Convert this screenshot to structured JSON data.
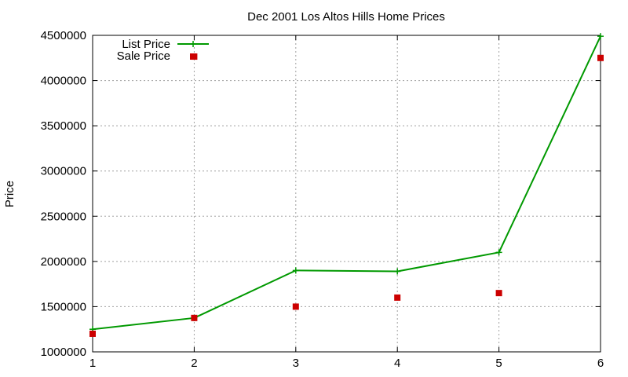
{
  "chart_data": {
    "type": "line",
    "title": "Dec 2001 Los Altos Hills Home Prices",
    "ylabel": "Price",
    "xlabel": "",
    "x": [
      1,
      2,
      3,
      4,
      5,
      6
    ],
    "xlim": [
      1,
      6
    ],
    "ylim": [
      1000000,
      4500000
    ],
    "x_ticks": [
      "1",
      "2",
      "3",
      "4",
      "5",
      "6"
    ],
    "y_ticks": [
      "1000000",
      "1500000",
      "2000000",
      "2500000",
      "3000000",
      "3500000",
      "4000000",
      "4500000"
    ],
    "grid": true,
    "legend_position": "top-left",
    "series": [
      {
        "name": "List Price",
        "style": "linespoints",
        "marker": "plus",
        "color": "#009900",
        "values": [
          1250000,
          1375000,
          1900000,
          1890000,
          2100000,
          4490000
        ]
      },
      {
        "name": "Sale Price",
        "style": "points",
        "marker": "square",
        "color": "#cc0000",
        "values": [
          1200000,
          4265000,
          1500000,
          1600000,
          1650000,
          4250000
        ]
      }
    ],
    "extra_points": [
      {
        "series": "Sale Price",
        "x": 2,
        "y": 1375000
      }
    ]
  }
}
